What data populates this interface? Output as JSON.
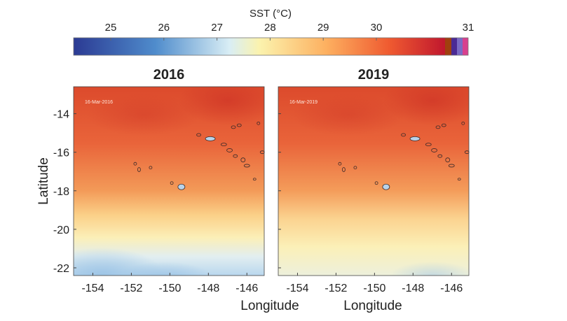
{
  "chart_data": {
    "type": "heatmap",
    "colorbar": {
      "label": "SST (°C)",
      "ticks": [
        25,
        26,
        27,
        28,
        29,
        30
      ],
      "end_label": "31",
      "range": [
        24.3,
        31
      ],
      "colors": [
        "#2b3a93",
        "#4f8ccc",
        "#d9eef5",
        "#fbf3ae",
        "#fdb060",
        "#ef5a30",
        "#c0172e"
      ],
      "extension_colors": [
        "#a0400e",
        "#4b2a94",
        "#7a6ac4",
        "#d8408e"
      ]
    },
    "xlabel": "Longitude",
    "ylabel": "Latitude",
    "xlim": [
      -155,
      -145.1
    ],
    "ylim": [
      -22.4,
      -12.6
    ],
    "xticks": [
      -154,
      -152,
      -150,
      -148,
      -146
    ],
    "yticks": [
      -14,
      -16,
      -18,
      -20,
      -22
    ],
    "panels": [
      {
        "title": "2016",
        "date": "16-Mar-2016",
        "cool_bottom": true
      },
      {
        "title": "2019",
        "date": "16-Mar-2019",
        "cool_bottom": false
      }
    ]
  }
}
